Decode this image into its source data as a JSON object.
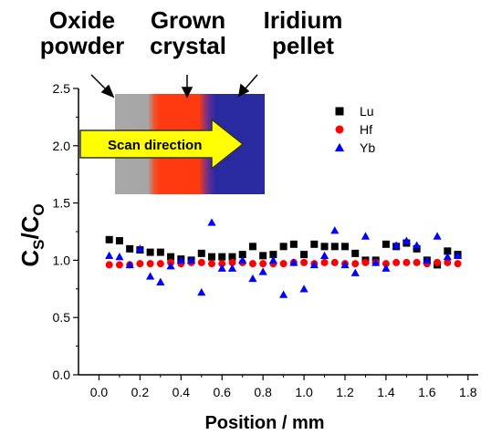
{
  "header_labels": {
    "oxide": [
      "Oxide",
      "powder"
    ],
    "crystal": [
      "Grown",
      "crystal"
    ],
    "iridium": [
      "Iridium",
      "pellet"
    ]
  },
  "inset": {
    "arrow_label": "Scan direction",
    "region_colors": {
      "oxide": "#a6a6a6",
      "crystal": "#ff3a10",
      "iridium": "#2a2aa0"
    },
    "arrow_color": "#ffff00"
  },
  "chart_data": {
    "type": "scatter",
    "xlabel": "Position / mm",
    "ylabel": {
      "main": "C",
      "sub1": "S",
      "mid": "/C",
      "sub2": "O"
    },
    "xlim": [
      -0.1,
      1.85
    ],
    "ylim": [
      0.0,
      2.5
    ],
    "xticks": [
      "0.0",
      "0.2",
      "0.4",
      "0.6",
      "0.8",
      "1.0",
      "1.2",
      "1.4",
      "1.6",
      "1.8"
    ],
    "yticks": [
      "0.0",
      "0.5",
      "1.0",
      "1.5",
      "2.0",
      "2.5"
    ],
    "grid": false,
    "legend_position": "top-right",
    "series": [
      {
        "name": "Lu",
        "marker": "square",
        "color": "#000000",
        "points": [
          [
            0.05,
            1.18
          ],
          [
            0.1,
            1.17
          ],
          [
            0.15,
            1.1
          ],
          [
            0.2,
            1.09
          ],
          [
            0.25,
            1.07
          ],
          [
            0.3,
            1.07
          ],
          [
            0.35,
            1.03
          ],
          [
            0.4,
            1.01
          ],
          [
            0.45,
            1.0
          ],
          [
            0.5,
            1.06
          ],
          [
            0.55,
            1.03
          ],
          [
            0.6,
            1.03
          ],
          [
            0.65,
            1.03
          ],
          [
            0.7,
            1.05
          ],
          [
            0.75,
            1.12
          ],
          [
            0.8,
            1.04
          ],
          [
            0.85,
            1.05
          ],
          [
            0.9,
            1.12
          ],
          [
            0.95,
            1.14
          ],
          [
            1.0,
            1.05
          ],
          [
            1.05,
            1.14
          ],
          [
            1.1,
            1.12
          ],
          [
            1.15,
            1.12
          ],
          [
            1.2,
            1.12
          ],
          [
            1.25,
            1.06
          ],
          [
            1.3,
            1.0
          ],
          [
            1.35,
            1.0
          ],
          [
            1.4,
            1.14
          ],
          [
            1.45,
            1.12
          ],
          [
            1.5,
            1.15
          ],
          [
            1.55,
            1.1
          ],
          [
            1.6,
            1.0
          ],
          [
            1.65,
            0.96
          ],
          [
            1.7,
            1.08
          ],
          [
            1.75,
            1.05
          ]
        ]
      },
      {
        "name": "Hf",
        "marker": "circle",
        "color": "#ff0000",
        "points": [
          [
            0.05,
            0.96
          ],
          [
            0.1,
            0.96
          ],
          [
            0.15,
            0.96
          ],
          [
            0.2,
            0.97
          ],
          [
            0.25,
            0.97
          ],
          [
            0.3,
            0.97
          ],
          [
            0.35,
            0.98
          ],
          [
            0.4,
            0.97
          ],
          [
            0.45,
            0.98
          ],
          [
            0.5,
            0.98
          ],
          [
            0.55,
            0.97
          ],
          [
            0.6,
            0.97
          ],
          [
            0.65,
            0.98
          ],
          [
            0.7,
            0.98
          ],
          [
            0.75,
            0.97
          ],
          [
            0.8,
            0.97
          ],
          [
            0.85,
            0.97
          ],
          [
            0.9,
            0.97
          ],
          [
            0.95,
            0.98
          ],
          [
            1.0,
            0.98
          ],
          [
            1.05,
            0.97
          ],
          [
            1.1,
            0.98
          ],
          [
            1.15,
            0.98
          ],
          [
            1.2,
            0.97
          ],
          [
            1.25,
            0.97
          ],
          [
            1.3,
            0.98
          ],
          [
            1.35,
            0.98
          ],
          [
            1.4,
            0.97
          ],
          [
            1.45,
            0.98
          ],
          [
            1.5,
            0.98
          ],
          [
            1.55,
            0.98
          ],
          [
            1.6,
            0.97
          ],
          [
            1.65,
            0.98
          ],
          [
            1.7,
            0.98
          ],
          [
            1.75,
            0.97
          ]
        ]
      },
      {
        "name": "Yb",
        "marker": "triangle",
        "color": "#0000ff",
        "points": [
          [
            0.05,
            1.04
          ],
          [
            0.1,
            1.03
          ],
          [
            0.15,
            0.96
          ],
          [
            0.2,
            1.1
          ],
          [
            0.25,
            0.86
          ],
          [
            0.3,
            0.81
          ],
          [
            0.35,
            0.95
          ],
          [
            0.4,
            1.0
          ],
          [
            0.45,
            1.0
          ],
          [
            0.5,
            0.72
          ],
          [
            0.55,
            1.33
          ],
          [
            0.6,
            0.93
          ],
          [
            0.65,
            0.93
          ],
          [
            0.7,
            1.0
          ],
          [
            0.75,
            0.84
          ],
          [
            0.8,
            0.9
          ],
          [
            0.85,
            1.0
          ],
          [
            0.9,
            0.7
          ],
          [
            0.95,
            0.98
          ],
          [
            1.0,
            0.75
          ],
          [
            1.05,
            0.96
          ],
          [
            1.1,
            1.04
          ],
          [
            1.15,
            1.26
          ],
          [
            1.2,
            0.96
          ],
          [
            1.25,
            0.89
          ],
          [
            1.3,
            1.21
          ],
          [
            1.35,
            0.98
          ],
          [
            1.4,
            0.93
          ],
          [
            1.45,
            1.13
          ],
          [
            1.5,
            1.17
          ],
          [
            1.55,
            1.13
          ],
          [
            1.6,
            1.0
          ],
          [
            1.65,
            1.21
          ],
          [
            1.7,
            1.03
          ],
          [
            1.75,
            1.04
          ]
        ]
      }
    ]
  }
}
